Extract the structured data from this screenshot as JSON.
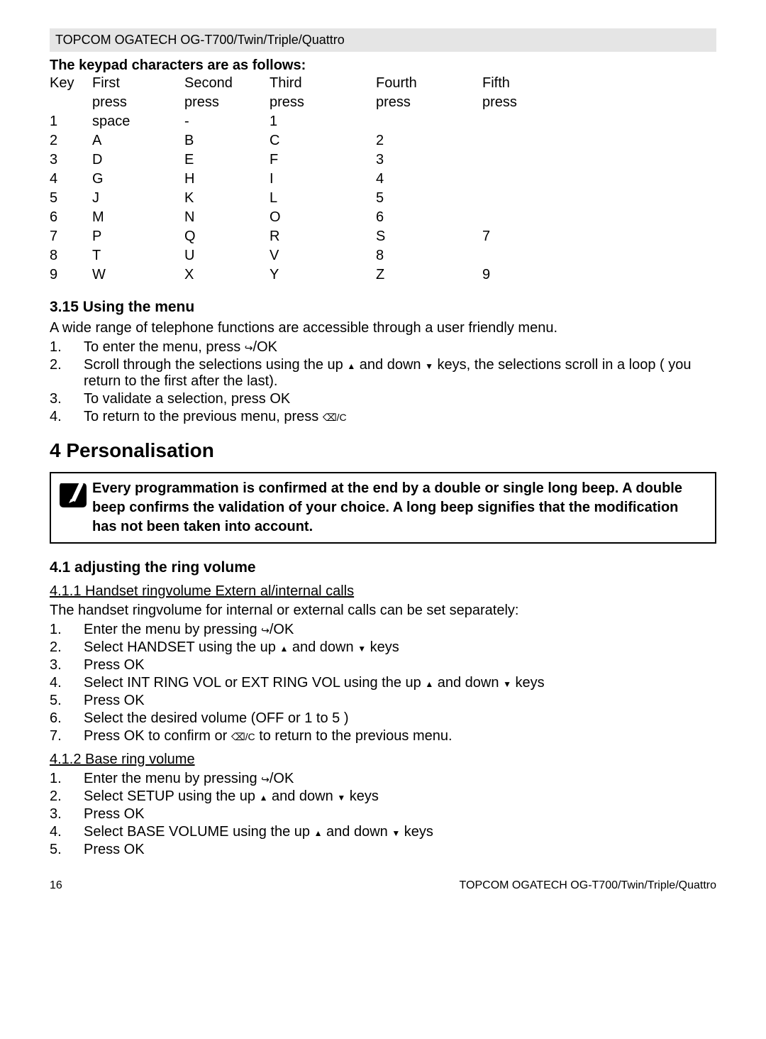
{
  "header": "TOPCOM OGATECH OG-T700/Twin/Triple/Quattro",
  "keypad_title": "The keypad characters are as follows:",
  "keypad": {
    "headers": {
      "c0": "Key",
      "c1": "First",
      "c2": "Second",
      "c3": "Third",
      "c4": "Fourth",
      "c5": "Fifth",
      "sub": "press"
    },
    "rows": [
      {
        "k": "1",
        "p1": "space",
        "p2": "-",
        "p3": "1",
        "p4": "",
        "p5": ""
      },
      {
        "k": "2",
        "p1": "A",
        "p2": "B",
        "p3": "C",
        "p4": "2",
        "p5": ""
      },
      {
        "k": "3",
        "p1": "D",
        "p2": "E",
        "p3": "F",
        "p4": "3",
        "p5": ""
      },
      {
        "k": "4",
        "p1": "G",
        "p2": "H",
        "p3": "I",
        "p4": "4",
        "p5": ""
      },
      {
        "k": "5",
        "p1": "J",
        "p2": "K",
        "p3": "L",
        "p4": "5",
        "p5": ""
      },
      {
        "k": "6",
        "p1": "M",
        "p2": "N",
        "p3": "O",
        "p4": "6",
        "p5": ""
      },
      {
        "k": "7",
        "p1": "P",
        "p2": "Q",
        "p3": "R",
        "p4": "S",
        "p5": "7"
      },
      {
        "k": "8",
        "p1": "T",
        "p2": "U",
        "p3": "V",
        "p4": "8",
        "p5": ""
      },
      {
        "k": "9",
        "p1": "W",
        "p2": "X",
        "p3": "Y",
        "p4": "Z",
        "p5": "9"
      }
    ]
  },
  "s315": {
    "title": "3.15   Using the menu",
    "intro": "A wide range of telephone functions are accessible through a user friendly menu.",
    "steps": {
      "1a": "To enter the menu, press ",
      "1b": "/OK",
      "2a": "Scroll through the selections using the up ",
      "2b": " and down ",
      "2c": " keys, the selections scroll in a loop ( you return to the first after the last).",
      "3": "To validate a selection, press OK",
      "4a": "To return to the previous menu, press "
    }
  },
  "ch4": {
    "title": "4    Personalisation",
    "note": "Every programmation is confirmed at the end by a double or single long beep. A double beep confirms the validation of your choice. A long beep signifies that the modification has not been taken into account."
  },
  "s41": {
    "title": "4.1    adjusting the ring volume",
    "sub1": "4.1.1 Handset ringvolume Extern    al/internal calls",
    "intro1": "The handset ringvolume for internal or external calls can be set separately:",
    "hs": {
      "1a": "Enter the menu by pressing ",
      "1b": "/OK",
      "2a": "Select HANDSET using the up ",
      "2b": " and down ",
      "2c": " keys",
      "3": "Press OK",
      "4a": "Select INT RING VOL or EXT RING VOL using the up ",
      "4b": " and down ",
      "4c": " keys",
      "5": "Press OK",
      "6": "Select the desired volume (OFF or 1 to 5 )",
      "7a": "Press OK to confirm or ",
      "7b": " to return to the previous menu."
    },
    "sub2": "4.1.2 Base ring volume",
    "bs": {
      "1a": "Enter the menu by pressing ",
      "1b": "/OK",
      "2a": "Select SETUP using the up ",
      "2b": " and down ",
      "2c": " keys",
      "3": "Press OK",
      "4a": "Select BASE VOLUME using the up ",
      "4b": " and down ",
      "4c": " keys",
      "5": "Press OK"
    }
  },
  "footer": {
    "page": "16",
    "right": "TOPCOM OGATECH OG-T700/Twin/Triple/Quattro"
  }
}
